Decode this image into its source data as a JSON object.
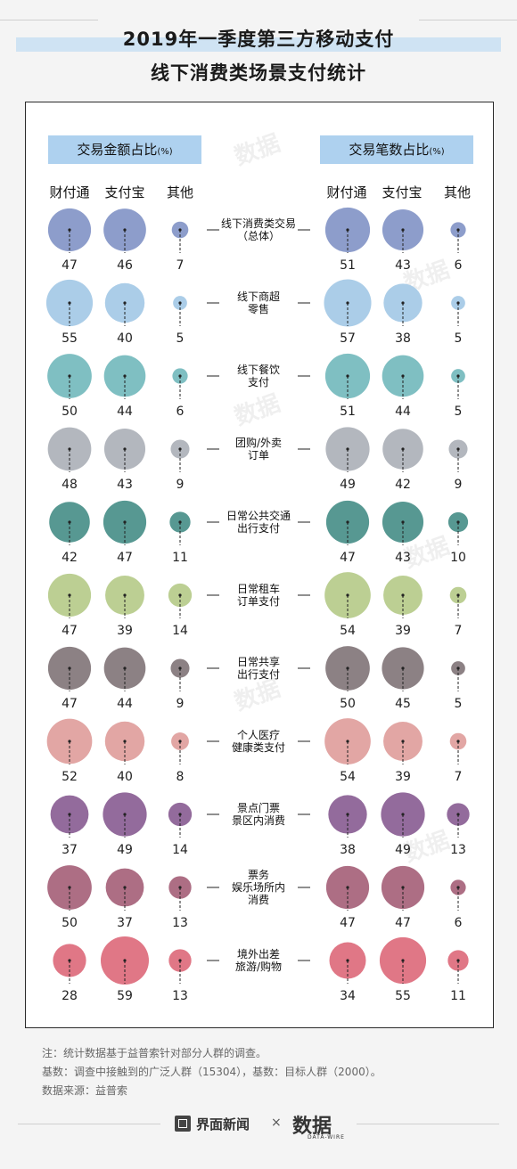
{
  "title": {
    "line1": "2019年一季度第三方移动支付",
    "line2": "线下消费类场景支付统计"
  },
  "sections": {
    "left": {
      "label": "交易金额占比",
      "unit": "(%)"
    },
    "right": {
      "label": "交易笔数占比",
      "unit": "(%)"
    }
  },
  "columns": [
    "财付通",
    "支付宝",
    "其他"
  ],
  "watermark_text": "数据",
  "chart_data": {
    "type": "bubble",
    "unit": "%",
    "series": [
      "财付通",
      "支付宝",
      "其他"
    ],
    "categories": [
      {
        "label": [
          "线下消费类交易",
          "（总体）"
        ],
        "color": "#8d9dcb",
        "amount": [
          47,
          46,
          7
        ],
        "count": [
          51,
          43,
          6
        ]
      },
      {
        "label": [
          "线下商超",
          "零售"
        ],
        "color": "#abcde8",
        "amount": [
          55,
          40,
          5
        ],
        "count": [
          57,
          38,
          5
        ]
      },
      {
        "label": [
          "线下餐饮",
          "支付"
        ],
        "color": "#7fbfc2",
        "amount": [
          50,
          44,
          6
        ],
        "count": [
          51,
          44,
          5
        ]
      },
      {
        "label": [
          "团购/外卖",
          "订单"
        ],
        "color": "#b3b7be",
        "amount": [
          48,
          43,
          9
        ],
        "count": [
          49,
          42,
          9
        ]
      },
      {
        "label": [
          "日常公共交通",
          "出行支付"
        ],
        "color": "#579892",
        "amount": [
          42,
          47,
          11
        ],
        "count": [
          47,
          43,
          10
        ]
      },
      {
        "label": [
          "日常租车",
          "订单支付"
        ],
        "color": "#bccf93",
        "amount": [
          47,
          39,
          14
        ],
        "count": [
          54,
          39,
          7
        ]
      },
      {
        "label": [
          "日常共享",
          "出行支付"
        ],
        "color": "#8c8184",
        "amount": [
          47,
          44,
          9
        ],
        "count": [
          50,
          45,
          5
        ]
      },
      {
        "label": [
          "个人医疗",
          "健康类支付"
        ],
        "color": "#e2a6a4",
        "amount": [
          52,
          40,
          8
        ],
        "count": [
          54,
          39,
          7
        ]
      },
      {
        "label": [
          "景点门票",
          "景区内消费"
        ],
        "color": "#936b9c",
        "amount": [
          37,
          49,
          14
        ],
        "count": [
          38,
          49,
          13
        ]
      },
      {
        "label": [
          "票务",
          "娱乐场所内",
          "消费"
        ],
        "color": "#ad6e84",
        "amount": [
          50,
          37,
          13
        ],
        "count": [
          47,
          47,
          6
        ]
      },
      {
        "label": [
          "境外出差",
          "旅游/购物"
        ],
        "color": "#e07786",
        "amount": [
          28,
          59,
          13
        ],
        "count": [
          34,
          55,
          11
        ]
      }
    ]
  },
  "notes": [
    "注：统计数据基于益普索针对部分人群的调查。",
    "基数：调查中接触到的广泛人群（15304），基数：目标人群（2000）。",
    "数据来源：益普索"
  ],
  "footer": {
    "brand1": "界面新闻",
    "cross": "×",
    "brand2": "数据",
    "brand2_sub": "DATA-WIRE"
  }
}
